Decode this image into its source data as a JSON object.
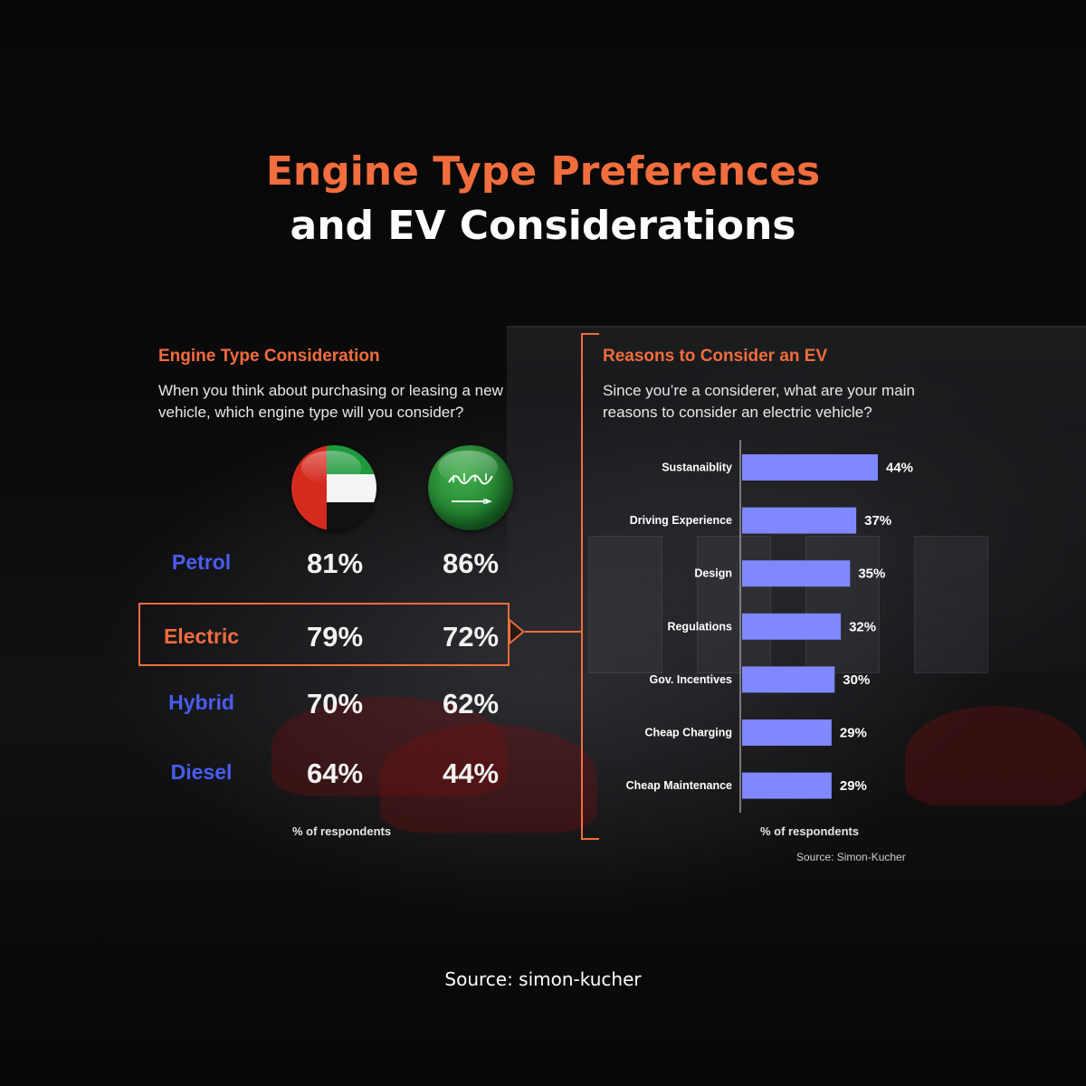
{
  "title": {
    "line1": "Engine Type Preferences",
    "line2": "and EV Considerations"
  },
  "colors": {
    "accent": "#f26d3d",
    "row_label_blue": "#4a5cf0",
    "bar_fill": "#7f88ff",
    "background": "#050505"
  },
  "left_panel": {
    "heading": "Engine Type Consideration",
    "question_line1": "When you think about purchasing or leasing a new",
    "question_line2": "vehicle, which engine type will you consider?",
    "countries": [
      {
        "name": "UAE",
        "icon": "uae-flag-icon"
      },
      {
        "name": "Saudi Arabia",
        "icon": "saudi-arabia-flag-icon"
      }
    ],
    "rows": [
      {
        "label": "Petrol",
        "uae": "81%",
        "ksa": "86%"
      },
      {
        "label": "Electric",
        "uae": "79%",
        "ksa": "72%",
        "highlighted": true
      },
      {
        "label": "Hybrid",
        "uae": "70%",
        "ksa": "62%"
      },
      {
        "label": "Diesel",
        "uae": "64%",
        "ksa": "44%"
      }
    ],
    "footnote": "% of respondents"
  },
  "right_panel": {
    "heading": "Reasons to Consider an EV",
    "question_line1": "Since you’re a considerer, what are your main",
    "question_line2": "reasons to consider an electric vehicle?",
    "footnote": "% of respondents",
    "source": "Source: Simon-Kucher"
  },
  "chart_data": [
    {
      "type": "table",
      "columns": [
        "UAE",
        "Saudi Arabia"
      ],
      "rows": [
        "Petrol",
        "Electric",
        "Hybrid",
        "Diesel"
      ],
      "values": [
        [
          81,
          86
        ],
        [
          79,
          72
        ],
        [
          70,
          62
        ],
        [
          64,
          44
        ]
      ],
      "unit": "% of respondents"
    },
    {
      "type": "bar",
      "orientation": "horizontal",
      "categories": [
        "Sustanaiblity",
        "Driving Experience",
        "Design",
        "Regulations",
        "Gov. Incentives",
        "Cheap Charging",
        "Cheap Maintenance"
      ],
      "values": [
        44,
        37,
        35,
        32,
        30,
        29,
        29
      ],
      "value_labels": [
        "44%",
        "37%",
        "35%",
        "32%",
        "30%",
        "29%",
        "29%"
      ],
      "xlabel": "% of respondents",
      "xlim": [
        0,
        44
      ],
      "grid": false
    }
  ],
  "source": "Source: simon-kucher"
}
